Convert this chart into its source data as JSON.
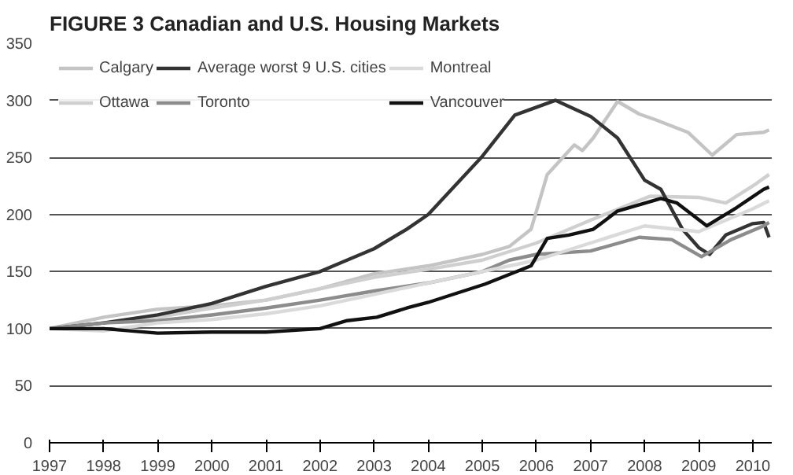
{
  "chart_data": {
    "type": "line",
    "title": "FIGURE 3 Canadian and U.S. Housing Markets",
    "xlim": [
      1997,
      2010.35
    ],
    "xticks": [
      1997,
      1998,
      1999,
      2000,
      2001,
      2002,
      2003,
      2004,
      2005,
      2006,
      2007,
      2008,
      2009,
      2010
    ],
    "ylim": [
      0,
      350
    ],
    "yticks": [
      0,
      50,
      100,
      150,
      200,
      250,
      300,
      350
    ],
    "grid": "y",
    "legend": "top left",
    "line_style": "solid",
    "marker": "none",
    "series": [
      {
        "name": "Calgary",
        "color": "#c4c4c4",
        "x": [
          1997,
          1998,
          1999,
          2000,
          2001,
          2002,
          2003,
          2004,
          2005,
          2005.5,
          2005.9,
          2006.2,
          2006.7,
          2006.85,
          2007.05,
          2007.5,
          2007.9,
          2008.2,
          2008.8,
          2009.25,
          2009.7,
          2010.2,
          2010.3
        ],
        "values": [
          100,
          110,
          117,
          120,
          125,
          135,
          148,
          155,
          165,
          172,
          187,
          235,
          261,
          256,
          267,
          299,
          288,
          283,
          272,
          252,
          270,
          272,
          274
        ]
      },
      {
        "name": "Ottawa",
        "color": "#cfcfcf",
        "x": [
          1997,
          1998,
          1999,
          2000,
          2001,
          2002,
          2003,
          2004,
          2005,
          2006,
          2007,
          2008.1,
          2009,
          2009.5,
          2010,
          2010.3
        ],
        "values": [
          100,
          105,
          110,
          118,
          125,
          135,
          145,
          152,
          160,
          175,
          195,
          216,
          215,
          210,
          225,
          235
        ]
      },
      {
        "name": "Average worst 9 U.S. cities",
        "color": "#333333",
        "x": [
          1997,
          1998,
          1999,
          2000,
          2001,
          2002,
          2003,
          2003.6,
          2004,
          2005,
          2005.6,
          2006.35,
          2007,
          2007.5,
          2008,
          2008.3,
          2008.7,
          2009,
          2009.2,
          2009.5,
          2010,
          2010.2,
          2010.3
        ],
        "values": [
          100,
          105,
          112,
          122,
          137,
          150,
          170,
          187,
          200,
          251,
          287,
          300,
          286,
          267,
          230,
          222,
          187,
          171,
          165,
          182,
          192,
          193,
          180
        ]
      },
      {
        "name": "Toronto",
        "color": "#8c8c8c",
        "x": [
          1997,
          1998,
          1999,
          2000,
          2001,
          2002,
          2003,
          2004,
          2005,
          2005.5,
          2006,
          2007,
          2007.9,
          2008.5,
          2009.05,
          2009.6,
          2010.2,
          2010.3
        ],
        "values": [
          100,
          105,
          107,
          112,
          118,
          125,
          133,
          140,
          150,
          160,
          165,
          168,
          180,
          178,
          163,
          178,
          190,
          193
        ]
      },
      {
        "name": "Montreal",
        "color": "#dadada",
        "x": [
          1997,
          1998,
          1999,
          2000,
          2001,
          2002,
          2003,
          2004,
          2005,
          2006,
          2007,
          2008,
          2009,
          2009.5,
          2010,
          2010.3
        ],
        "values": [
          100,
          98,
          105,
          108,
          113,
          120,
          130,
          140,
          150,
          160,
          175,
          190,
          185,
          195,
          205,
          212
        ]
      },
      {
        "name": "Vancouver",
        "color": "#111111",
        "x": [
          1997,
          1998,
          1999,
          2000,
          2001,
          2002,
          2002.5,
          2003.05,
          2003.6,
          2004,
          2005.05,
          2005.9,
          2006.2,
          2006.6,
          2007.05,
          2007.5,
          2008.3,
          2008.6,
          2009.15,
          2009.7,
          2010.2,
          2010.3
        ],
        "values": [
          100,
          100,
          96,
          97,
          97,
          100,
          107,
          110,
          118,
          123,
          139,
          155,
          179,
          182,
          187,
          203,
          214,
          210,
          190,
          206,
          222,
          224
        ]
      }
    ]
  }
}
